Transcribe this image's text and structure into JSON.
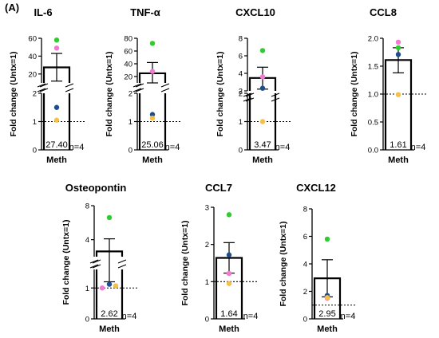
{
  "panel_label": "(A)",
  "colors": {
    "bar_stroke": "#000000",
    "donor1": "#2ecc2e",
    "donor2": "#f07ad0",
    "donor3": "#1f4e8c",
    "donor4": "#f5c04a"
  },
  "chart_data": [
    {
      "type": "bar",
      "title": "IL-6",
      "ylabel": "Fold change (Untx=1)",
      "category": "Meth",
      "mean": 27.4,
      "value_label": "27.40",
      "n_label": "n=4",
      "error_upper": 43,
      "error_lower": 12,
      "points": [
        58,
        49,
        1.5,
        1.05
      ],
      "broken_axis": true,
      "lower_axis": {
        "ylim": [
          0,
          2
        ],
        "ticks": [
          "0",
          "1",
          "2"
        ]
      },
      "upper_axis": {
        "ylim": [
          10,
          60
        ],
        "ticks": [
          "20",
          "40",
          "60"
        ]
      },
      "reference_line": 1,
      "grid": false
    },
    {
      "type": "bar",
      "title": "TNF-α",
      "ylabel": "Fold change (Untx=1)",
      "category": "Meth",
      "mean": 25.06,
      "value_label": "25.06",
      "n_label": "n=4",
      "error_upper": 42,
      "error_lower": 10,
      "points": [
        72,
        28,
        1.25,
        1.12
      ],
      "broken_axis": true,
      "lower_axis": {
        "ylim": [
          0,
          2
        ],
        "ticks": [
          "0",
          "1",
          "2"
        ]
      },
      "upper_axis": {
        "ylim": [
          10,
          80
        ],
        "ticks": [
          "20",
          "40",
          "60",
          "80"
        ]
      },
      "reference_line": 1,
      "grid": false
    },
    {
      "type": "bar",
      "title": "CXCL10",
      "ylabel": "Fold change (Untx=1)",
      "category": "Meth",
      "mean": 3.47,
      "value_label": "3.47",
      "n_label": "n=4",
      "error_upper": 4.7,
      "error_lower": 2.2,
      "points": [
        6.6,
        3.6,
        2.3,
        1.0
      ],
      "broken_axis": true,
      "lower_axis": {
        "ylim": [
          0,
          2
        ],
        "ticks": [
          "0",
          "1",
          "2"
        ]
      },
      "upper_axis": {
        "ylim": [
          2,
          8
        ],
        "ticks": [
          "2",
          "4",
          "6",
          "8"
        ]
      },
      "reference_line": 1,
      "grid": false
    },
    {
      "type": "bar",
      "title": "CCL8",
      "ylabel": "Fold change (Untx=1)",
      "category": "Meth",
      "mean": 1.61,
      "value_label": "1.61",
      "n_label": "n=4",
      "error_upper": 1.83,
      "error_lower": 1.38,
      "points": [
        1.83,
        1.93,
        1.71,
        0.99
      ],
      "broken_axis": false,
      "axis": {
        "ylim": [
          0,
          2
        ],
        "ticks": [
          "0.0",
          "0.5",
          "1.0",
          "1.5",
          "2.0"
        ]
      },
      "reference_line": 1,
      "grid": false
    },
    {
      "type": "bar",
      "title": "Osteopontin",
      "ylabel": "Fold change (Untx=1)",
      "category": "Meth",
      "mean": 2.62,
      "value_label": "2.62",
      "n_label": "n=4",
      "error_upper": 4.1,
      "error_lower": 1.2,
      "points": [
        6.6,
        1.0,
        1.12,
        1.07
      ],
      "broken_axis": true,
      "lower_axis": {
        "ylim": [
          0,
          1.6
        ],
        "ticks": [
          "0",
          "1"
        ]
      },
      "upper_axis": {
        "ylim": [
          2,
          8
        ],
        "ticks": [
          "4",
          "8"
        ]
      },
      "reference_line": 1,
      "grid": false
    },
    {
      "type": "bar",
      "title": "CCL7",
      "ylabel": "Fold change (Untx=1)",
      "category": "Meth",
      "mean": 1.64,
      "value_label": "1.64",
      "n_label": "n=4",
      "error_upper": 2.05,
      "error_lower": 1.23,
      "points": [
        2.8,
        1.22,
        1.72,
        0.95
      ],
      "broken_axis": false,
      "axis": {
        "ylim": [
          0,
          3
        ],
        "ticks": [
          "0",
          "1",
          "2",
          "3"
        ]
      },
      "reference_line": 1,
      "grid": false
    },
    {
      "type": "bar",
      "title": "CXCL12",
      "ylabel": "Fold change (Untx=1)",
      "category": "Meth",
      "mean": 2.95,
      "value_label": "2.95",
      "n_label": "n=4",
      "error_upper": 4.3,
      "error_lower": 1.6,
      "points": [
        5.8,
        1.5,
        1.7,
        1.55
      ],
      "broken_axis": false,
      "axis": {
        "ylim": [
          0,
          8
        ],
        "ticks": [
          "0",
          "2",
          "4",
          "6",
          "8"
        ]
      },
      "reference_line": 1,
      "grid": false
    }
  ]
}
